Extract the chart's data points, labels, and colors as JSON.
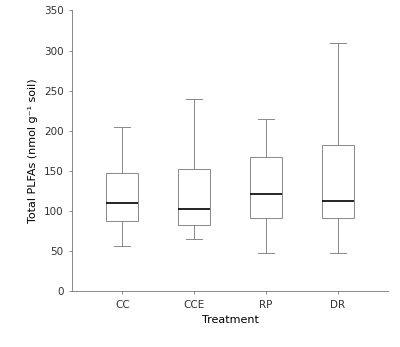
{
  "categories": [
    "CC",
    "CCE",
    "RP",
    "DR"
  ],
  "box_data": {
    "CC": {
      "whislo": 57,
      "q1": 88,
      "med": 110,
      "q3": 147,
      "whishi": 205
    },
    "CCE": {
      "whislo": 65,
      "q1": 83,
      "med": 103,
      "q3": 153,
      "whishi": 240
    },
    "RP": {
      "whislo": 48,
      "q1": 92,
      "med": 122,
      "q3": 168,
      "whishi": 215
    },
    "DR": {
      "whislo": 48,
      "q1": 92,
      "med": 113,
      "q3": 183,
      "whishi": 310
    }
  },
  "ylabel": "Total PLFAs (nmol g⁻¹ soil)",
  "xlabel": "Treatment",
  "ylim": [
    0,
    350
  ],
  "yticks": [
    0,
    50,
    100,
    150,
    200,
    250,
    300,
    350
  ],
  "box_color": "#ffffff",
  "median_color": "#000000",
  "whisker_color": "#888888",
  "box_edge_color": "#888888",
  "background_color": "#ffffff",
  "label_fontsize": 8,
  "tick_fontsize": 7.5
}
